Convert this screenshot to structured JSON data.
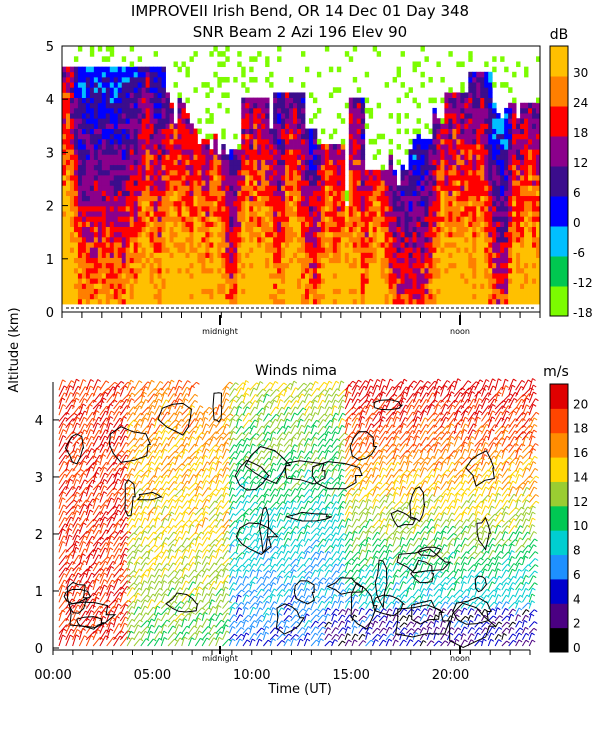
{
  "title_line1": "IMPROVEII  Irish Bend, OR  14 Dec 01 Day 348",
  "title_line2": "SNR Beam 2 Azi 196 Elev 90",
  "shared_ylabel": "Altitude (km)",
  "chart_data": [
    {
      "type": "heatmap",
      "title": "SNR Beam 2 Azi 196 Elev 90",
      "ylabel": "Altitude (km)",
      "ylim": [
        0,
        5
      ],
      "yticks": [
        "0",
        "1",
        "2",
        "3",
        "4",
        "5"
      ],
      "x_markers": [
        "midnight",
        "noon"
      ],
      "colorbar": {
        "unit": "dB",
        "ticks": [
          "-18",
          "-12",
          "-6",
          "0",
          "6",
          "12",
          "18",
          "24",
          "30"
        ],
        "range": [
          -18,
          36
        ],
        "colors": [
          "#7cfc00",
          "#00c850",
          "#00bfff",
          "#0000ff",
          "#3b0d8c",
          "#8b008b",
          "#ff0000",
          "#ff7f00",
          "#ffc000"
        ]
      },
      "description_of_values": "SNR (dB) vs time and altitude; high values (red/orange) in lowest 2 km, scattered plumes to 5 km"
    },
    {
      "type": "scatter",
      "title": "Winds nima",
      "subtype": "wind barbs colored by speed with contours",
      "xlabel": "Time (UT)",
      "xlim": [
        0,
        24
      ],
      "xticks": [
        "00:00",
        "05:00",
        "10:00",
        "15:00",
        "20:00"
      ],
      "ylabel": "Altitude (km)",
      "ylim": [
        0,
        4.7
      ],
      "yticks": [
        "0",
        "1",
        "2",
        "3",
        "4"
      ],
      "x_markers": [
        "midnight",
        "noon"
      ],
      "colorbar": {
        "unit": "m/s",
        "ticks": [
          "0",
          "2",
          "4",
          "6",
          "8",
          "10",
          "12",
          "14",
          "16",
          "18",
          "20"
        ],
        "range": [
          0,
          22
        ],
        "colors": [
          "#000000",
          "#4b0082",
          "#0000cd",
          "#1e90ff",
          "#00ced1",
          "#00c853",
          "#9acd32",
          "#ffd700",
          "#ff8c00",
          "#ff4500",
          "#e00000"
        ]
      },
      "description_of_values": "Wind speed ~20 m/s at all heights 00-03 UT, decreasing to 4-10 m/s near surface after 10 UT; strong (>16 m/s) aloft after 14 UT"
    }
  ]
}
